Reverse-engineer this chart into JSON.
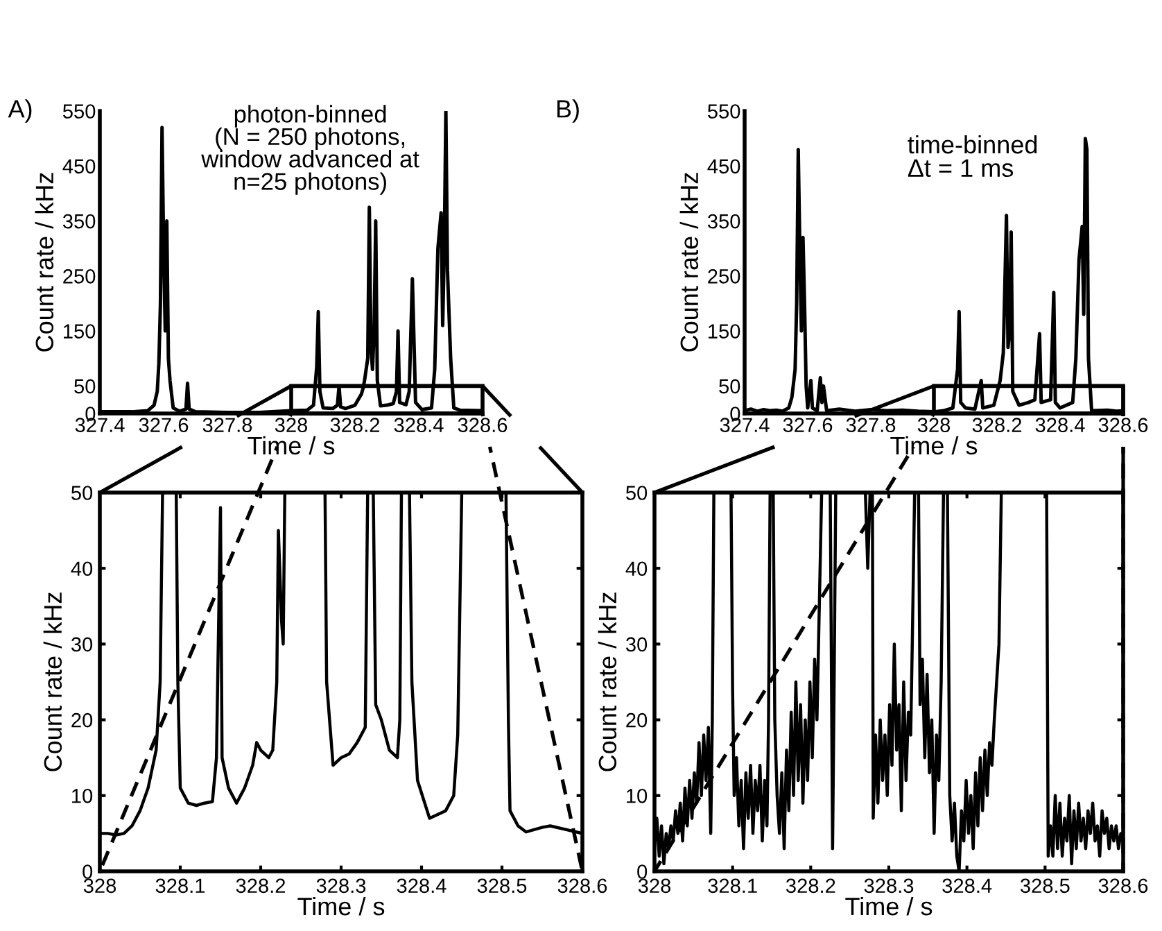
{
  "chart_data": [
    {
      "type": "line",
      "xlabel": "Time / s",
      "ylabel": "Count rate / kHz",
      "xlim": [
        327.4,
        328.6
      ],
      "ylim": [
        0,
        550
      ],
      "xticks": [
        327.4,
        327.6,
        327.8,
        328,
        328.2,
        328.4,
        328.6
      ],
      "yticks": [
        0,
        50,
        150,
        250,
        350,
        450,
        550
      ],
      "grid": false,
      "legend": false,
      "annotations": [
        "A)",
        "photon-binned\n(N = 250 photons,\nwindow advanced at\nn=25 photons)"
      ],
      "series": [
        {
          "color": "#000000",
          "x": [
            327.4,
            327.5,
            327.55,
            327.57,
            327.58,
            327.585,
            327.59,
            327.595,
            327.6,
            327.605,
            327.61,
            327.615,
            327.62,
            327.63,
            327.65,
            327.67,
            327.675,
            327.68,
            327.7,
            327.8,
            327.9,
            328.0,
            328.05,
            328.07,
            328.08,
            328.085,
            328.09,
            328.1,
            328.13,
            328.145,
            328.15,
            328.155,
            328.17,
            328.2,
            328.22,
            328.225,
            328.23,
            328.24,
            328.245,
            328.25,
            328.255,
            328.26,
            328.265,
            328.27,
            328.28,
            328.3,
            328.32,
            328.33,
            328.335,
            328.34,
            328.36,
            328.37,
            328.38,
            328.39,
            328.41,
            328.44,
            328.45,
            328.46,
            328.47,
            328.475,
            328.48,
            328.485,
            328.49,
            328.5,
            328.51,
            328.53,
            328.6
          ],
          "values": [
            3,
            3,
            5,
            15,
            40,
            90,
            200,
            520,
            300,
            150,
            350,
            100,
            60,
            10,
            4,
            8,
            55,
            8,
            3,
            2,
            2,
            5,
            6,
            15,
            85,
            185,
            40,
            10,
            9,
            15,
            50,
            12,
            9,
            15,
            35,
            45,
            60,
            100,
            375,
            120,
            80,
            150,
            350,
            60,
            14,
            15,
            18,
            40,
            150,
            20,
            16,
            40,
            245,
            20,
            7,
            10,
            80,
            300,
            365,
            160,
            300,
            550,
            260,
            100,
            10,
            6,
            5
          ]
        }
      ]
    },
    {
      "type": "line",
      "xlabel": "Time / s",
      "ylabel": "Count rate / kHz",
      "xlim": [
        328,
        328.6
      ],
      "ylim": [
        0,
        50
      ],
      "xticks": [
        328,
        328.1,
        328.2,
        328.3,
        328.4,
        328.5,
        328.6
      ],
      "yticks": [
        0,
        10,
        20,
        30,
        40,
        50
      ],
      "grid": false,
      "legend": false,
      "series": [
        {
          "color": "#000000",
          "x": [
            328.0,
            328.01,
            328.02,
            328.03,
            328.04,
            328.05,
            328.06,
            328.07,
            328.075,
            328.078,
            328.085,
            328.095,
            328.097,
            328.1,
            328.11,
            328.12,
            328.13,
            328.14,
            328.145,
            328.15,
            328.152,
            328.16,
            328.17,
            328.18,
            328.19,
            328.195,
            328.2,
            328.21,
            328.215,
            328.22,
            328.222,
            328.226,
            328.228,
            328.23,
            328.25,
            328.28,
            328.282,
            328.29,
            328.3,
            328.31,
            328.32,
            328.33,
            328.333,
            328.336,
            328.34,
            328.343,
            328.35,
            328.36,
            328.37,
            328.373,
            328.375,
            328.38,
            328.385,
            328.388,
            328.395,
            328.41,
            328.43,
            328.44,
            328.445,
            328.45,
            328.48,
            328.505,
            328.508,
            328.51,
            328.52,
            328.53,
            328.55,
            328.56,
            328.58,
            328.6
          ],
          "values": [
            5,
            5,
            4.8,
            5,
            6,
            8,
            11,
            16,
            25,
            50,
            null,
            50,
            25,
            11,
            9,
            8.7,
            9,
            9.2,
            15,
            48,
            15,
            11,
            9,
            11,
            14,
            17,
            16,
            15,
            16,
            25,
            45,
            33,
            30,
            50,
            null,
            50,
            25,
            14,
            15,
            15.5,
            17,
            19,
            50,
            null,
            50,
            22,
            20,
            16,
            15,
            20,
            50,
            null,
            50,
            25,
            12,
            7,
            8,
            10,
            18,
            50,
            null,
            50,
            20,
            8,
            6,
            5.2,
            5.8,
            6,
            5.5,
            5
          ]
        }
      ]
    },
    {
      "type": "line",
      "xlabel": "Time / s",
      "ylabel": "Count rate / kHz",
      "xlim": [
        327.4,
        328.6
      ],
      "ylim": [
        0,
        550
      ],
      "xticks": [
        327.4,
        327.6,
        327.8,
        328,
        328.2,
        328.4,
        328.6
      ],
      "yticks": [
        0,
        50,
        150,
        250,
        350,
        450,
        550
      ],
      "grid": false,
      "legend": false,
      "annotations": [
        "B)",
        "time-binned\nΔt = 1 ms"
      ],
      "series": [
        {
          "color": "#000000",
          "x": [
            327.4,
            327.42,
            327.44,
            327.46,
            327.48,
            327.5,
            327.52,
            327.54,
            327.55,
            327.56,
            327.565,
            327.57,
            327.575,
            327.58,
            327.585,
            327.59,
            327.595,
            327.6,
            327.61,
            327.615,
            327.63,
            327.64,
            327.645,
            327.65,
            327.66,
            327.7,
            327.75,
            327.8,
            327.85,
            327.9,
            327.95,
            328.0,
            328.03,
            328.06,
            328.075,
            328.08,
            328.085,
            328.1,
            328.13,
            328.15,
            328.155,
            328.19,
            328.21,
            328.22,
            328.23,
            328.235,
            328.24,
            328.245,
            328.25,
            328.27,
            328.3,
            328.32,
            328.335,
            328.34,
            328.37,
            328.38,
            328.385,
            328.4,
            328.44,
            328.45,
            328.46,
            328.47,
            328.475,
            328.48,
            328.485,
            328.49,
            328.5,
            328.55,
            328.58,
            328.6
          ],
          "values": [
            5,
            8,
            4,
            7,
            5,
            6,
            4,
            10,
            30,
            80,
            200,
            480,
            300,
            150,
            320,
            200,
            50,
            10,
            60,
            10,
            5,
            65,
            20,
            50,
            5,
            8,
            4,
            7,
            5,
            6,
            4,
            3,
            5,
            10,
            80,
            185,
            20,
            10,
            8,
            60,
            10,
            15,
            60,
            110,
            360,
            120,
            150,
            330,
            40,
            15,
            20,
            25,
            145,
            20,
            25,
            220,
            20,
            10,
            20,
            100,
            280,
            340,
            180,
            500,
            480,
            100,
            5,
            6,
            4,
            5
          ]
        }
      ]
    },
    {
      "type": "line",
      "xlabel": "Time / s",
      "ylabel": "Count rate / kHz",
      "xlim": [
        328,
        328.6
      ],
      "ylim": [
        0,
        50
      ],
      "xticks": [
        328,
        328.1,
        328.2,
        328.3,
        328.4,
        328.5,
        328.6
      ],
      "yticks": [
        0,
        10,
        20,
        30,
        40,
        50
      ],
      "grid": false,
      "legend": false,
      "series": [
        {
          "color": "#000000",
          "x": [
            328.0,
            328.003,
            328.006,
            328.009,
            328.012,
            328.015,
            328.018,
            328.021,
            328.024,
            328.027,
            328.03,
            328.033,
            328.036,
            328.039,
            328.042,
            328.045,
            328.048,
            328.051,
            328.054,
            328.057,
            328.06,
            328.063,
            328.066,
            328.069,
            328.072,
            328.074,
            328.076,
            328.087,
            328.098,
            328.1,
            328.102,
            328.105,
            328.108,
            328.111,
            328.114,
            328.117,
            328.12,
            328.123,
            328.126,
            328.129,
            328.132,
            328.135,
            328.138,
            328.141,
            328.144,
            328.146,
            328.148,
            328.15,
            328.152,
            328.154,
            328.157,
            328.16,
            328.163,
            328.166,
            328.169,
            328.172,
            328.175,
            328.178,
            328.181,
            328.184,
            328.187,
            328.19,
            328.193,
            328.196,
            328.199,
            328.202,
            328.205,
            328.208,
            328.211,
            328.214,
            328.22,
            328.225,
            328.228,
            328.23,
            328.232,
            328.25,
            328.27,
            328.273,
            328.276,
            328.278,
            328.279,
            328.28,
            328.283,
            328.286,
            328.289,
            328.292,
            328.295,
            328.298,
            328.301,
            328.304,
            328.307,
            328.31,
            328.313,
            328.316,
            328.319,
            328.322,
            328.325,
            328.328,
            328.33,
            328.333,
            328.336,
            328.338,
            328.34,
            328.343,
            328.346,
            328.349,
            328.352,
            328.355,
            328.358,
            328.361,
            328.364,
            328.367,
            328.37,
            328.373,
            328.375,
            328.378,
            328.381,
            328.384,
            328.387,
            328.39,
            328.393,
            328.396,
            328.399,
            328.402,
            328.405,
            328.408,
            328.411,
            328.414,
            328.417,
            328.42,
            328.423,
            328.426,
            328.429,
            328.432,
            328.435,
            328.438,
            328.441,
            328.444,
            328.47,
            328.502,
            328.504,
            328.507,
            328.51,
            328.513,
            328.516,
            328.519,
            328.522,
            328.525,
            328.528,
            328.531,
            328.534,
            328.537,
            328.54,
            328.543,
            328.546,
            328.549,
            328.552,
            328.555,
            328.558,
            328.561,
            328.564,
            328.567,
            328.57,
            328.573,
            328.576,
            328.579,
            328.582,
            328.585,
            328.588,
            328.591,
            328.594,
            328.597,
            328.6
          ],
          "values": [
            3,
            7,
            2,
            6,
            1,
            5,
            3,
            6,
            4,
            8,
            5,
            9,
            4,
            11,
            6,
            12,
            7,
            13,
            9,
            17,
            10,
            18,
            12,
            19,
            5,
            20,
            50,
            null,
            50,
            24,
            10,
            15,
            6,
            12,
            3,
            13,
            7,
            14,
            5,
            12,
            8,
            14,
            4,
            12,
            6,
            20,
            50,
            null,
            50,
            20,
            10,
            5,
            13,
            3,
            16,
            8,
            21,
            10,
            25,
            12,
            22,
            9,
            20,
            12,
            25,
            15,
            28,
            20,
            35,
            50,
            null,
            50,
            3,
            25,
            50,
            null,
            50,
            40,
            50,
            null,
            50,
            7,
            18,
            9,
            20,
            12,
            18,
            10,
            22,
            14,
            30,
            16,
            22,
            8,
            25,
            12,
            21,
            18,
            30,
            50,
            null,
            50,
            22,
            28,
            15,
            26,
            13,
            20,
            5,
            18,
            12,
            25,
            50,
            null,
            50,
            10,
            4,
            9,
            2,
            0,
            8,
            4,
            12,
            5,
            10,
            3,
            13,
            6,
            15,
            8,
            16,
            10,
            17,
            14,
            20,
            25,
            30,
            50,
            null,
            50,
            2,
            6,
            2,
            10,
            3,
            9,
            2,
            7,
            4,
            10,
            1,
            8,
            3,
            9,
            4,
            7,
            3,
            8,
            5,
            9,
            4,
            6,
            2,
            8,
            5,
            7,
            3,
            6,
            4,
            6,
            3,
            5,
            4
          ]
        }
      ]
    }
  ]
}
